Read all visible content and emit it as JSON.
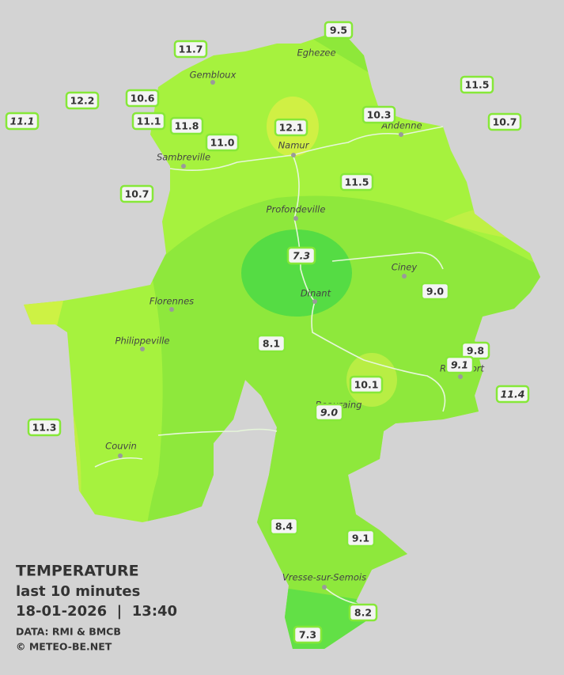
{
  "title": "TEMPERATURE",
  "subtitle": "last 10 minutes",
  "datetime": "18-01-2026  |  13:40",
  "source": "DATA: RMI & BMCB",
  "credit": "© METEO-BE.NET",
  "towns": [
    "Eghezee",
    "Gembloux",
    "Andenne",
    "Namur",
    "Sambreville",
    "Profondeville",
    "Ciney",
    "Florennes",
    "Dinant",
    "Philippeville",
    "Rochefort",
    "Beauraing",
    "Couvin",
    "Vresse-sur-Semois"
  ],
  "stations": [
    {
      "label": "9.5",
      "italic": false
    },
    {
      "label": "11.7",
      "italic": false
    },
    {
      "label": "11.5",
      "italic": false
    },
    {
      "label": "12.2",
      "italic": false
    },
    {
      "label": "10.6",
      "italic": false
    },
    {
      "label": "10.3",
      "italic": false
    },
    {
      "label": "11.1",
      "italic": true
    },
    {
      "label": "11.1",
      "italic": false
    },
    {
      "label": "11.8",
      "italic": false
    },
    {
      "label": "12.1",
      "italic": false
    },
    {
      "label": "10.7",
      "italic": false
    },
    {
      "label": "11.0",
      "italic": false
    },
    {
      "label": "11.5",
      "italic": false
    },
    {
      "label": "10.7",
      "italic": false
    },
    {
      "label": "7.3",
      "italic": true
    },
    {
      "label": "9.0",
      "italic": false
    },
    {
      "label": "8.1",
      "italic": false
    },
    {
      "label": "9.8",
      "italic": false
    },
    {
      "label": "9.1",
      "italic": true
    },
    {
      "label": "10.1",
      "italic": false
    },
    {
      "label": "11.4",
      "italic": true
    },
    {
      "label": "9.0",
      "italic": true
    },
    {
      "label": "11.3",
      "italic": false
    },
    {
      "label": "8.4",
      "italic": false
    },
    {
      "label": "9.1",
      "italic": false
    },
    {
      "label": "8.2",
      "italic": false
    },
    {
      "label": "7.3",
      "italic": false
    }
  ]
}
